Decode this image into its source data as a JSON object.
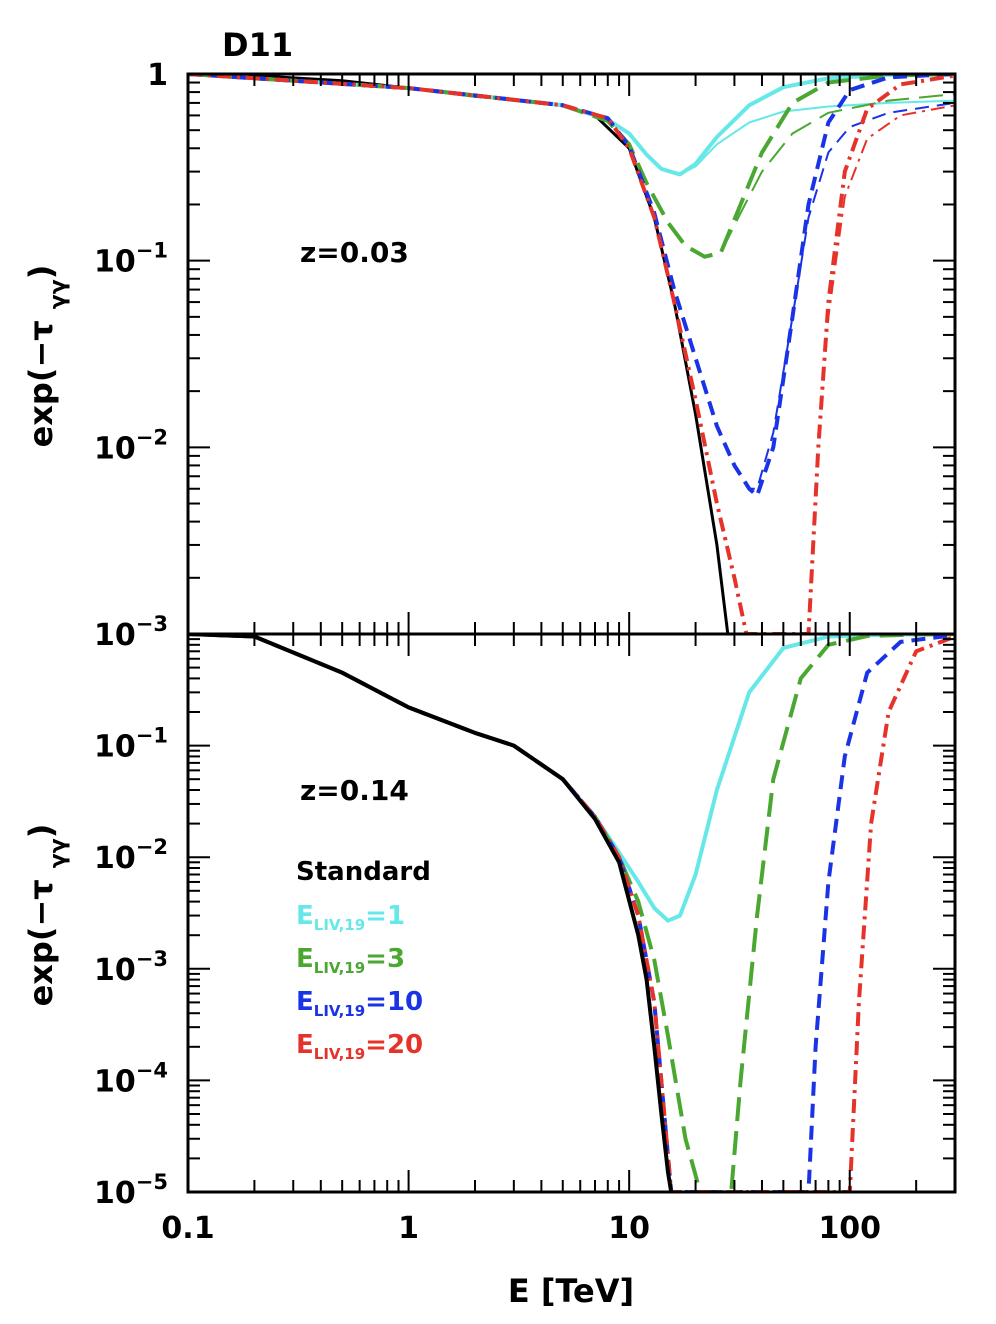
{
  "figure_title": "D11",
  "xlabel": "E [TeV]",
  "ylabel": "exp(−τγγ)",
  "colors": {
    "standard": "#000000",
    "liv1": "#66e8e8",
    "liv3": "#4aa832",
    "liv10": "#1a33e6",
    "liv20": "#e6332a"
  },
  "legend": {
    "title": "Standard",
    "items": [
      {
        "prefix": "E",
        "sub": "LIV,19",
        "suffix": "=1",
        "color_key": "liv1"
      },
      {
        "prefix": "E",
        "sub": "LIV,19",
        "suffix": "=3",
        "color_key": "liv3"
      },
      {
        "prefix": "E",
        "sub": "LIV,19",
        "suffix": "=10",
        "color_key": "liv10"
      },
      {
        "prefix": "E",
        "sub": "LIV,19",
        "suffix": "=20",
        "color_key": "liv20"
      }
    ]
  },
  "chart_data": [
    {
      "type": "line",
      "panel": "top",
      "annotation": "z=0.03",
      "xscale": "log",
      "yscale": "log",
      "xlim": [
        0.1,
        300
      ],
      "ylim": [
        0.001,
        1
      ],
      "xticks": [
        {
          "v": 0.1,
          "label": "0.1"
        },
        {
          "v": 1,
          "label": "1"
        },
        {
          "v": 10,
          "label": "10"
        },
        {
          "v": 100,
          "label": "100"
        }
      ],
      "yticks": [
        {
          "v": 1,
          "base": "1",
          "exp": ""
        },
        {
          "v": 0.1,
          "base": "10",
          "exp": "−1"
        },
        {
          "v": 0.01,
          "base": "10",
          "exp": "−2"
        },
        {
          "v": 0.001,
          "base": "10",
          "exp": "−3"
        }
      ],
      "series": [
        {
          "name": "Standard",
          "color_key": "standard",
          "width": 3,
          "dash": "",
          "x": [
            0.1,
            0.2,
            0.5,
            1,
            2,
            3,
            5,
            7,
            10,
            13,
            16,
            20,
            25,
            28
          ],
          "y": [
            1,
            0.98,
            0.92,
            0.84,
            0.76,
            0.73,
            0.68,
            0.6,
            0.4,
            0.17,
            0.06,
            0.015,
            0.003,
            0.001
          ]
        },
        {
          "name": "E_LIV,19=1 (thick)",
          "color_key": "liv1",
          "width": 4,
          "dash": "",
          "x": [
            0.1,
            1,
            5,
            8,
            10,
            12,
            14,
            17,
            20,
            25,
            35,
            50,
            80,
            150,
            300
          ],
          "y": [
            1,
            0.84,
            0.68,
            0.57,
            0.48,
            0.37,
            0.31,
            0.29,
            0.33,
            0.46,
            0.68,
            0.85,
            0.95,
            0.99,
            1
          ]
        },
        {
          "name": "E_LIV,19=1 (thin)",
          "color_key": "liv1",
          "width": 2,
          "dash": "",
          "x": [
            0.1,
            1,
            5,
            8,
            10,
            12,
            14,
            17,
            20,
            25,
            35,
            50,
            80,
            150,
            300
          ],
          "y": [
            1,
            0.84,
            0.68,
            0.57,
            0.48,
            0.37,
            0.31,
            0.29,
            0.32,
            0.42,
            0.55,
            0.63,
            0.67,
            0.7,
            0.72
          ]
        },
        {
          "name": "E_LIV,19=3 (thick)",
          "color_key": "liv3",
          "width": 4,
          "dash": "24,10",
          "x": [
            0.1,
            1,
            5,
            8,
            10,
            12,
            15,
            18,
            22,
            26,
            32,
            40,
            55,
            80,
            150,
            300
          ],
          "y": [
            1,
            0.84,
            0.68,
            0.56,
            0.42,
            0.26,
            0.16,
            0.12,
            0.105,
            0.11,
            0.2,
            0.38,
            0.7,
            0.9,
            0.98,
            1
          ]
        },
        {
          "name": "E_LIV,19=3 (thin)",
          "color_key": "liv3",
          "width": 2,
          "dash": "24,10",
          "x": [
            0.1,
            1,
            5,
            8,
            10,
            12,
            15,
            18,
            22,
            26,
            32,
            40,
            55,
            80,
            150,
            300
          ],
          "y": [
            1,
            0.84,
            0.68,
            0.56,
            0.42,
            0.26,
            0.16,
            0.12,
            0.105,
            0.11,
            0.18,
            0.3,
            0.48,
            0.62,
            0.72,
            0.78
          ]
        },
        {
          "name": "E_LIV,19=10 (thick)",
          "color_key": "liv10",
          "width": 4,
          "dash": "14,8",
          "x": [
            0.1,
            1,
            5,
            8,
            10,
            13,
            16,
            20,
            25,
            30,
            35,
            38,
            45,
            55,
            65,
            80,
            100,
            150,
            300
          ],
          "y": [
            1,
            0.84,
            0.68,
            0.58,
            0.41,
            0.18,
            0.07,
            0.03,
            0.013,
            0.008,
            0.006,
            0.0055,
            0.01,
            0.05,
            0.2,
            0.55,
            0.82,
            0.96,
            1
          ]
        },
        {
          "name": "E_LIV,19=10 (thin)",
          "color_key": "liv10",
          "width": 2,
          "dash": "14,8",
          "x": [
            0.1,
            1,
            5,
            8,
            10,
            13,
            16,
            20,
            25,
            30,
            35,
            38,
            45,
            55,
            65,
            80,
            100,
            150,
            300
          ],
          "y": [
            1,
            0.84,
            0.68,
            0.58,
            0.41,
            0.18,
            0.07,
            0.03,
            0.013,
            0.008,
            0.006,
            0.006,
            0.012,
            0.05,
            0.17,
            0.38,
            0.52,
            0.62,
            0.7
          ]
        },
        {
          "name": "E_LIV,19=20 (thick)",
          "color_key": "liv20",
          "width": 4,
          "dash": "14,6,3,6",
          "x": [
            0.1,
            1,
            5,
            8,
            10,
            13,
            16,
            20,
            25,
            30,
            34,
            65,
            72,
            80,
            95,
            120,
            170,
            300
          ],
          "y": [
            1,
            0.84,
            0.68,
            0.58,
            0.4,
            0.17,
            0.06,
            0.018,
            0.005,
            0.002,
            0.001,
            0.001,
            0.01,
            0.06,
            0.3,
            0.65,
            0.88,
            0.98
          ]
        },
        {
          "name": "E_LIV,19=20 (thin)",
          "color_key": "liv20",
          "width": 2,
          "dash": "14,6,3,6",
          "x": [
            0.1,
            1,
            5,
            8,
            10,
            13,
            16,
            20,
            25,
            30,
            34,
            65,
            72,
            80,
            95,
            120,
            170,
            300
          ],
          "y": [
            1,
            0.84,
            0.68,
            0.58,
            0.4,
            0.17,
            0.06,
            0.018,
            0.005,
            0.002,
            0.001,
            0.001,
            0.01,
            0.05,
            0.22,
            0.45,
            0.6,
            0.68
          ]
        }
      ]
    },
    {
      "type": "line",
      "panel": "bottom",
      "annotation": "z=0.14",
      "xscale": "log",
      "yscale": "log",
      "xlim": [
        0.1,
        300
      ],
      "ylim": [
        1e-05,
        1
      ],
      "xticks": [
        {
          "v": 0.1,
          "label": "0.1"
        },
        {
          "v": 1,
          "label": "1"
        },
        {
          "v": 10,
          "label": "10"
        },
        {
          "v": 100,
          "label": "100"
        }
      ],
      "yticks": [
        {
          "v": 0.1,
          "base": "10",
          "exp": "−1"
        },
        {
          "v": 0.01,
          "base": "10",
          "exp": "−2"
        },
        {
          "v": 0.001,
          "base": "10",
          "exp": "−3"
        },
        {
          "v": 0.0001,
          "base": "10",
          "exp": "−4"
        },
        {
          "v": 1e-05,
          "base": "10",
          "exp": "−5"
        }
      ],
      "series": [
        {
          "name": "E_LIV,19=1",
          "color_key": "liv1",
          "width": 4,
          "dash": "",
          "x": [
            0.1,
            0.2,
            0.5,
            1,
            2,
            3,
            5,
            7,
            9,
            11,
            13,
            15,
            17,
            20,
            25,
            35,
            50,
            80,
            150,
            300
          ],
          "y": [
            1,
            0.95,
            0.45,
            0.22,
            0.13,
            0.1,
            0.05,
            0.023,
            0.011,
            0.006,
            0.0035,
            0.0027,
            0.003,
            0.007,
            0.04,
            0.3,
            0.75,
            0.95,
            0.99,
            1
          ]
        },
        {
          "name": "E_LIV,19=3",
          "color_key": "liv3",
          "width": 4,
          "dash": "24,10",
          "x": [
            0.1,
            0.2,
            0.5,
            1,
            2,
            3,
            5,
            7,
            9,
            11,
            13,
            15,
            18,
            21,
            29,
            32,
            38,
            45,
            60,
            80,
            120,
            200,
            300
          ],
          "y": [
            1,
            0.95,
            0.45,
            0.22,
            0.13,
            0.1,
            0.05,
            0.023,
            0.01,
            0.004,
            0.0012,
            0.00025,
            3e-05,
            1e-05,
            1e-05,
            0.0001,
            0.003,
            0.05,
            0.4,
            0.8,
            0.96,
            0.99,
            1
          ]
        },
        {
          "name": "E_LIV,19=10",
          "color_key": "liv10",
          "width": 4,
          "dash": "14,8",
          "x": [
            0.1,
            0.2,
            0.5,
            1,
            2,
            3,
            5,
            7,
            9,
            11,
            13,
            15.5,
            65,
            70,
            80,
            95,
            120,
            170,
            300
          ],
          "y": [
            1,
            0.95,
            0.45,
            0.22,
            0.13,
            0.1,
            0.05,
            0.023,
            0.01,
            0.003,
            0.0005,
            1e-05,
            1e-05,
            0.0002,
            0.006,
            0.08,
            0.45,
            0.85,
            0.98
          ]
        },
        {
          "name": "E_LIV,19=20",
          "color_key": "liv20",
          "width": 4,
          "dash": "14,6,3,6",
          "x": [
            0.1,
            0.2,
            0.5,
            1,
            2,
            3,
            5,
            7,
            9,
            11,
            13,
            15.5,
            100,
            110,
            125,
            150,
            200,
            300
          ],
          "y": [
            1,
            0.95,
            0.45,
            0.22,
            0.13,
            0.1,
            0.05,
            0.023,
            0.01,
            0.003,
            0.0005,
            1e-05,
            1e-05,
            0.0005,
            0.02,
            0.2,
            0.7,
            0.95
          ]
        },
        {
          "name": "Standard",
          "color_key": "standard",
          "width": 4,
          "dash": "",
          "x": [
            0.1,
            0.2,
            0.5,
            1,
            2,
            3,
            5,
            7,
            9,
            11,
            12,
            13,
            14,
            15,
            15.5
          ],
          "y": [
            1,
            0.95,
            0.45,
            0.22,
            0.13,
            0.1,
            0.05,
            0.022,
            0.009,
            0.002,
            0.0008,
            0.0002,
            5e-05,
            1.5e-05,
            1e-05
          ]
        }
      ]
    }
  ]
}
